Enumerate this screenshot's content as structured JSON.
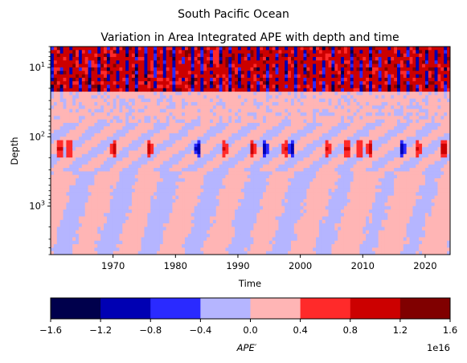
{
  "chart_data": {
    "type": "heatmap",
    "suptitle": "South Pacific Ocean",
    "title": "Variation in Area Integrated APE with depth and time",
    "xlabel": "Time",
    "ylabel": "Depth",
    "xlim": [
      1960,
      2024
    ],
    "ylim": [
      5000,
      5
    ],
    "yscale": "log",
    "x_ticks": [
      {
        "value": 1970,
        "label": "1970"
      },
      {
        "value": 1980,
        "label": "1980"
      },
      {
        "value": 1990,
        "label": "1990"
      },
      {
        "value": 2000,
        "label": "2000"
      },
      {
        "value": 2010,
        "label": "2010"
      },
      {
        "value": 2020,
        "label": "2020"
      }
    ],
    "y_ticks": [
      {
        "value": 10,
        "base": "10",
        "exp": "1"
      },
      {
        "value": 100,
        "base": "10",
        "exp": "2"
      },
      {
        "value": 1000,
        "base": "10",
        "exp": "3"
      }
    ],
    "colorbar": {
      "label": "APE′",
      "label_parts": {
        "name": "APE",
        "prime": "′"
      },
      "placement": "bottom",
      "levels": [
        -1.6,
        -1.2,
        -0.8,
        -0.4,
        0.0,
        0.4,
        0.8,
        1.2,
        1.6
      ],
      "tick_labels": [
        "−1.6",
        "−1.2",
        "−0.8",
        "−0.4",
        "0.0",
        "0.4",
        "0.8",
        "1.2",
        "1.6"
      ],
      "colors": [
        "#00004c",
        "#0000b3",
        "#2a2aff",
        "#b5b5ff",
        "#ffb5b5",
        "#ff2a2a",
        "#cc0000",
        "#800000"
      ],
      "offset_label": "1e16"
    },
    "features": [
      {
        "name": "surface-band",
        "x": [
          1960,
          2024
        ],
        "depth": [
          5,
          22
        ],
        "sign": "mixed-strong"
      },
      {
        "name": "subsurface-band",
        "x": [
          1960,
          2024
        ],
        "depth": [
          22,
          60
        ],
        "sign": "mostly-positive"
      },
      {
        "name": "thermocline-blobs",
        "depth_center": 150,
        "events": [
          {
            "x": 1961.5,
            "value": 0.9
          },
          {
            "x": 1963,
            "value": 0.85
          },
          {
            "x": 1970.2,
            "value": 0.9
          },
          {
            "x": 1975.8,
            "value": 0.95
          },
          {
            "x": 1983.6,
            "value": -1.0
          },
          {
            "x": 1987.8,
            "value": 0.85
          },
          {
            "x": 1992.3,
            "value": 0.9
          },
          {
            "x": 1994.3,
            "value": -0.9
          },
          {
            "x": 1997.7,
            "value": 0.85
          },
          {
            "x": 1998.7,
            "value": -1.0
          },
          {
            "x": 2004.3,
            "value": 0.85
          },
          {
            "x": 2007.5,
            "value": 0.9
          },
          {
            "x": 2009.5,
            "value": 0.85
          },
          {
            "x": 2011.2,
            "value": 0.95
          },
          {
            "x": 2016.3,
            "value": -0.9
          },
          {
            "x": 2018.8,
            "value": 0.85
          },
          {
            "x": 2023,
            "value": 1.0
          }
        ]
      },
      {
        "name": "deep-ocean",
        "x": [
          1960,
          2024
        ],
        "depth": [
          300,
          5000
        ],
        "sign": "weak-mixed"
      }
    ]
  }
}
